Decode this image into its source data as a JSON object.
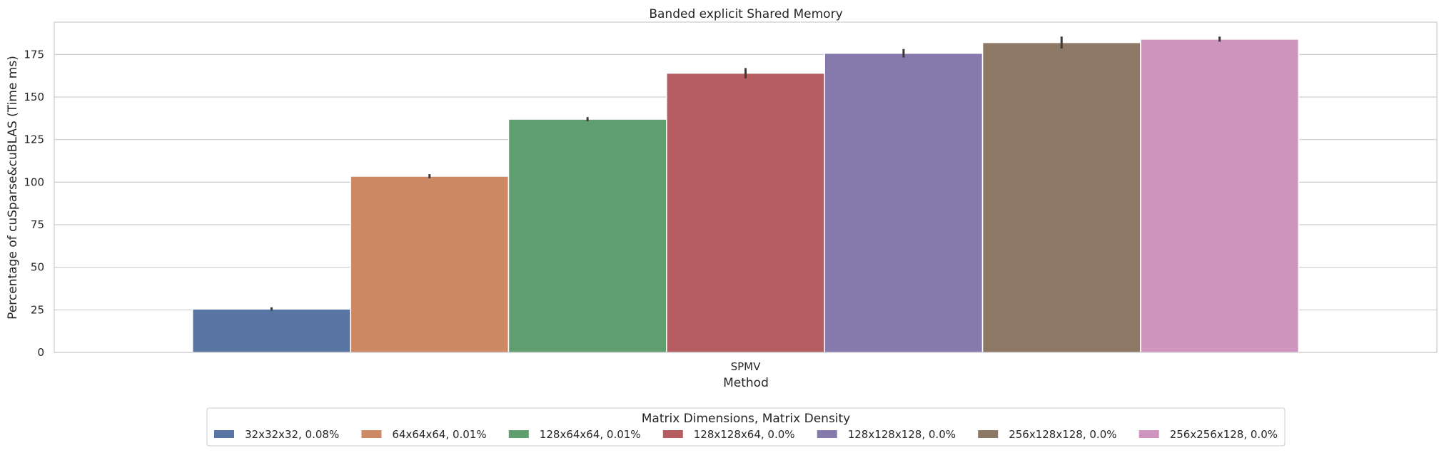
{
  "chart_data": {
    "type": "bar",
    "title": "Banded explicit Shared Memory",
    "xlabel": "Method",
    "ylabel": "Percentage of cuSparse&cuBLAS (Time ms)",
    "categories": [
      "SPMV"
    ],
    "ylim": [
      0,
      194
    ],
    "yticks": [
      0,
      25,
      50,
      75,
      100,
      125,
      150,
      175
    ],
    "grid": true,
    "legend": {
      "title": "Matrix Dimensions, Matrix Density",
      "placement": "bottom-center"
    },
    "series": [
      {
        "name": "32x32x32, 0.08%",
        "values": [
          25.5
        ],
        "err": [
          1.0
        ],
        "color": "#5975a4"
      },
      {
        "name": "64x64x64, 0.01%",
        "values": [
          103.5
        ],
        "err": [
          1.2
        ],
        "color": "#cc8963"
      },
      {
        "name": "128x64x64, 0.01%",
        "values": [
          137.0
        ],
        "err": [
          1.2
        ],
        "color": "#5f9e6e"
      },
      {
        "name": "128x128x64, 0.0%",
        "values": [
          164.0
        ],
        "err": [
          3.0
        ],
        "color": "#b55d60"
      },
      {
        "name": "128x128x128, 0.0%",
        "values": [
          175.7
        ],
        "err": [
          2.5
        ],
        "color": "#857aab"
      },
      {
        "name": "256x128x128, 0.0%",
        "values": [
          182.0
        ],
        "err": [
          3.5
        ],
        "color": "#8d7866"
      },
      {
        "name": "256x256x128, 0.0%",
        "values": [
          184.0
        ],
        "err": [
          1.5
        ],
        "color": "#d095bf"
      }
    ]
  }
}
